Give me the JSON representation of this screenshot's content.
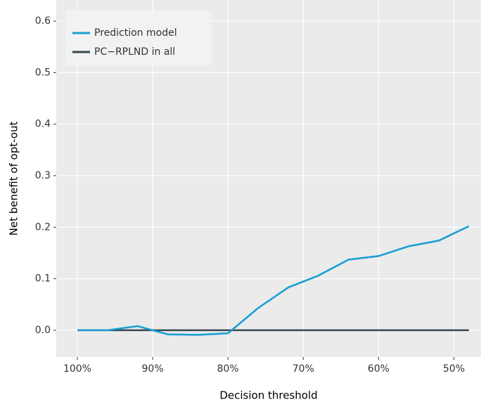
{
  "chart_data": {
    "type": "line",
    "x_label": "Decision threshold",
    "y_label": "Net benefit of opt-out",
    "x": [
      100,
      96,
      92,
      88,
      84,
      80,
      76,
      72,
      68,
      64,
      60,
      56,
      52,
      48
    ],
    "series": [
      {
        "name": "Prediction model",
        "color": "#1a9fd4",
        "values": [
          0,
          0,
          0.008,
          -0.008,
          -0.009,
          -0.006,
          0.043,
          0.083,
          0.106,
          0.137,
          0.144,
          0.163,
          0.174,
          0.202
        ]
      },
      {
        "name": "PC−RPLND in all",
        "color": "#37474f",
        "values": [
          0,
          0,
          0,
          0,
          0,
          0,
          0,
          0,
          0,
          0,
          0,
          0,
          0,
          0
        ]
      }
    ],
    "xlim": [
      102.8,
      46.4
    ],
    "xticks": [
      {
        "value": 100,
        "label": "100%"
      },
      {
        "value": 90,
        "label": "90%"
      },
      {
        "value": 80,
        "label": "80%"
      },
      {
        "value": 70,
        "label": "70%"
      },
      {
        "value": 60,
        "label": "60%"
      },
      {
        "value": 50,
        "label": "50%"
      }
    ],
    "ylim": [
      -0.052,
      0.641
    ],
    "yticks": [
      {
        "value": 0,
        "label": "0.0"
      },
      0.1,
      0.2,
      0.3,
      0.4,
      0.5,
      0.6
    ],
    "grid": true,
    "legend": "top-left"
  }
}
